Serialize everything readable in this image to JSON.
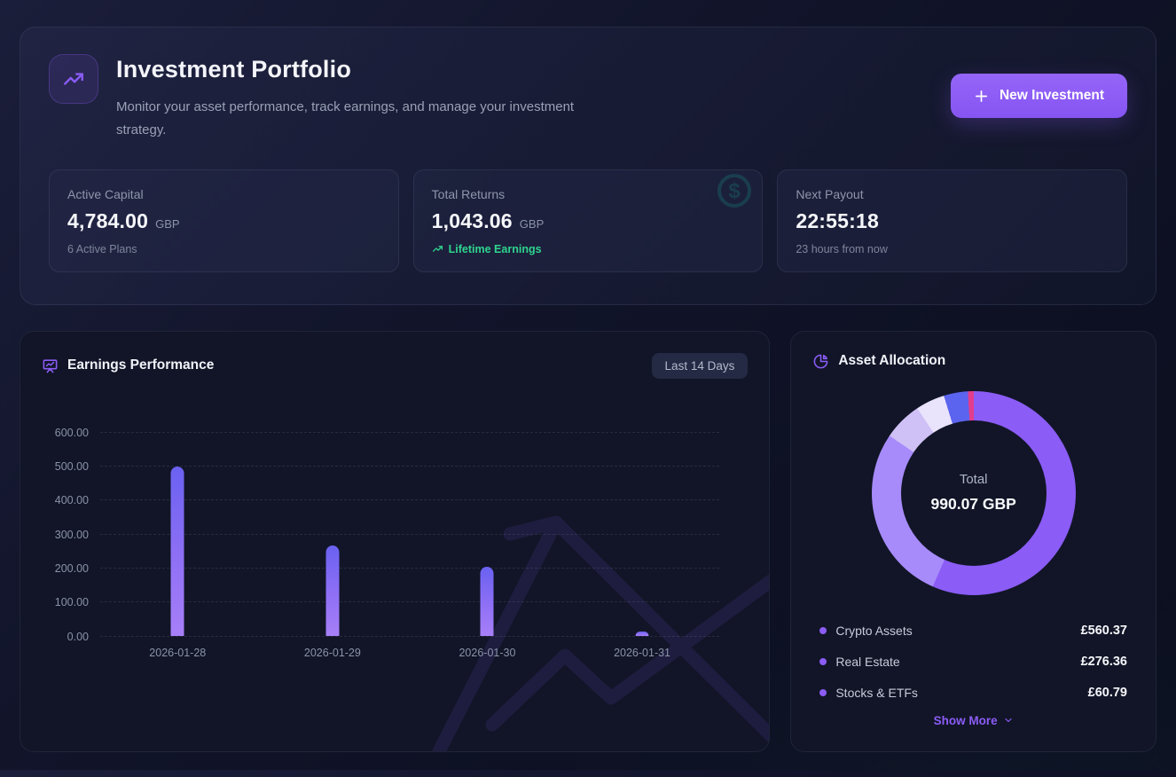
{
  "theme": {
    "accent": "#8b5cf6",
    "positive_green": "#2fd48f",
    "bar_gradient": [
      "#6a61f1",
      "#a77ff8"
    ],
    "panel_bg": "#111527",
    "page_bg": "#0d1022"
  },
  "header": {
    "title": "Investment Portfolio",
    "subtitle": "Monitor your asset performance, track earnings, and manage your investment strategy.",
    "new_investment_label": "New Investment"
  },
  "stats": {
    "active_capital": {
      "label": "Active Capital",
      "value": "4,784.00",
      "currency": "GBP",
      "subtext": "6 Active Plans"
    },
    "total_returns": {
      "label": "Total Returns",
      "value": "1,043.06",
      "currency": "GBP",
      "subtext": "Lifetime Earnings"
    },
    "next_payout": {
      "label": "Next Payout",
      "value": "22:55:18",
      "subtext": "23 hours from now"
    }
  },
  "earnings_panel": {
    "title": "Earnings Performance",
    "range_label": "Last 14 Days"
  },
  "allocation_panel": {
    "title": "Asset Allocation",
    "center_label": "Total",
    "center_value": "990.07 GBP",
    "legend": [
      {
        "label": "Crypto Assets",
        "value": "£560.37"
      },
      {
        "label": "Real Estate",
        "value": "£276.36"
      },
      {
        "label": "Stocks & ETFs",
        "value": "£60.79"
      }
    ],
    "show_more_label": "Show More"
  },
  "chart_data": [
    {
      "type": "bar",
      "title": "Earnings Performance",
      "x": [
        "2026-01-28",
        "2026-01-29",
        "2026-01-30",
        "2026-01-31"
      ],
      "values": [
        498,
        265,
        203,
        12
      ],
      "ylim": [
        0,
        600
      ],
      "yticks": [
        600,
        500,
        400,
        300,
        200,
        100,
        0
      ],
      "ytick_labels": [
        "600.00",
        "500.00",
        "400.00",
        "300.00",
        "200.00",
        "100.00",
        "0.00"
      ],
      "grid": "horizontal-dashed",
      "legend_position": "none"
    },
    {
      "type": "donut",
      "title": "Asset Allocation",
      "total": 990.07,
      "center_label": "Total",
      "center_value": "990.07 GBP",
      "segments": [
        {
          "label": "Crypto Assets",
          "value": 560.37,
          "color": "#8b5cf6",
          "in_legend": true
        },
        {
          "label": "Real Estate",
          "value": 276.36,
          "color": "#a78bfa",
          "in_legend": true
        },
        {
          "label": "Stocks & ETFs",
          "value": 60.79,
          "color": "#cfc0f6",
          "in_legend": true
        },
        {
          "label": "",
          "value": 45.5,
          "color": "#e9e3fb",
          "in_legend": false
        },
        {
          "label": "",
          "value": 37.8,
          "color": "#5b64ee",
          "in_legend": false
        },
        {
          "label": "",
          "value": 9.25,
          "color": "#e23d8d",
          "in_legend": false
        }
      ]
    }
  ]
}
